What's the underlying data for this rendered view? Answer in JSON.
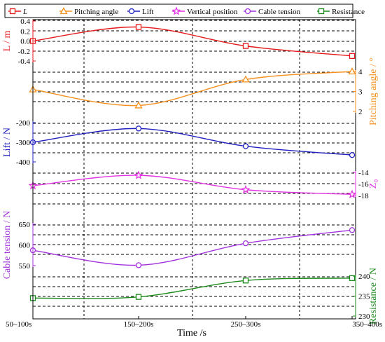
{
  "chart_data": {
    "type": "line",
    "categories": [
      "50–100s",
      "150–200s",
      "250–300s",
      "350–400s"
    ],
    "xlabel": "Time /s",
    "legend_placement": "top",
    "grid": "dashed horizontal and vertical",
    "series": [
      {
        "name": "L",
        "values": [
          0.0,
          0.28,
          -0.1,
          -0.3
        ],
        "ylabel": "L / m",
        "ylim": [
          -0.4,
          0.4
        ],
        "yticks": [
          "0.4",
          "0.2",
          "0.0",
          "-0.2",
          "-0.4"
        ],
        "axis_side": "left",
        "color": "#e41a1c",
        "marker": "square"
      },
      {
        "name": "Pitching angle",
        "values": [
          3.1,
          2.3,
          3.6,
          4.0
        ],
        "ylabel": "Pitching angle / °",
        "ylim": [
          2,
          4
        ],
        "yticks": [
          "4",
          "3",
          "2"
        ],
        "axis_side": "right",
        "color": "#f5901e",
        "marker": "triangle"
      },
      {
        "name": "Lift",
        "values": [
          -300,
          -230,
          -320,
          -365
        ],
        "ylabel": "Lift / N",
        "ylim": [
          -400,
          -200
        ],
        "yticks": [
          "-200",
          "-300",
          "-400"
        ],
        "axis_side": "left",
        "color": "#1f1fbf",
        "marker": "circle"
      },
      {
        "name": "Vertical position",
        "values": [
          -16.3,
          -14.5,
          -17.0,
          -17.8
        ],
        "ylabel": "Z₀",
        "ylim": [
          -18,
          -14
        ],
        "yticks": [
          "-14",
          "-16",
          "-18"
        ],
        "axis_side": "right",
        "color": "#e233e2",
        "marker": "star"
      },
      {
        "name": "Cable tension",
        "values": [
          587,
          551,
          604,
          636
        ],
        "ylabel": "Cable tension / N",
        "ylim": [
          550,
          650
        ],
        "yticks": [
          "650",
          "600",
          "550"
        ],
        "axis_side": "left",
        "color": "#a233dd",
        "marker": "circle"
      },
      {
        "name": "Resistance",
        "values": [
          234.5,
          234.8,
          238.9,
          239.5
        ],
        "ylabel": "Resistance / N",
        "ylim": [
          230,
          240
        ],
        "yticks": [
          "240",
          "235",
          "230"
        ],
        "axis_side": "right",
        "color": "#1b8a1b",
        "marker": "square"
      }
    ]
  },
  "legend": {
    "labels": [
      "L",
      "Pitching angle",
      "Lift",
      "Vertical position",
      "Cable tension",
      "Resistance"
    ]
  }
}
